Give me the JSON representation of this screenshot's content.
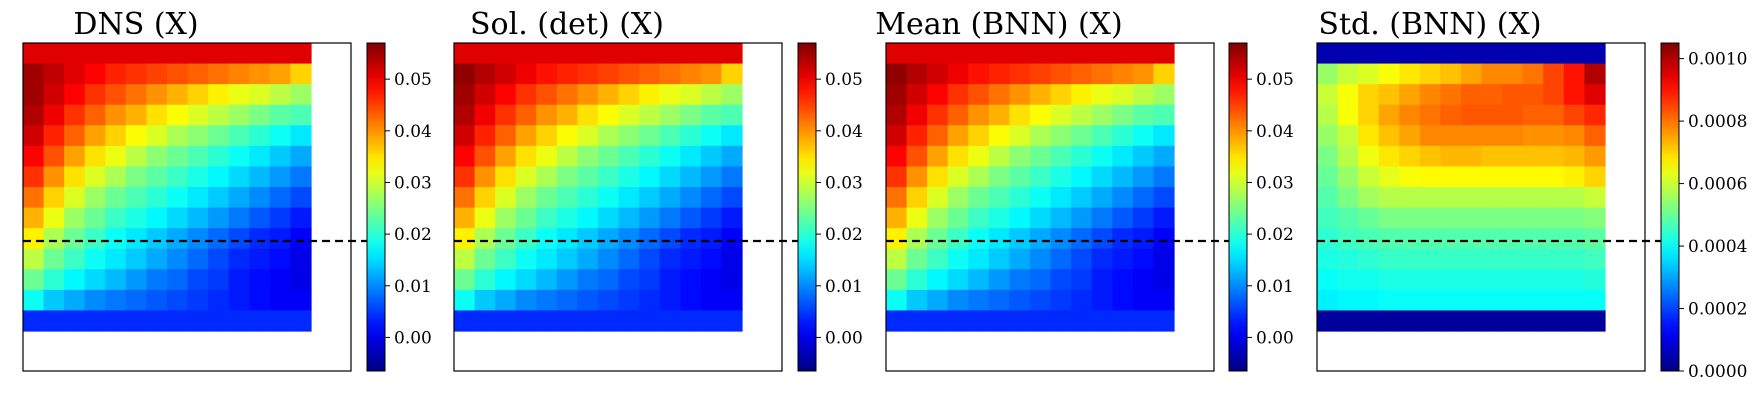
{
  "figure": {
    "panel_titles": [
      "DNS (X)",
      "Sol. (det) (X)",
      "Mean (BNN) (X)",
      "Std. (BNN) (X)"
    ]
  },
  "chart_data": [
    {
      "type": "heatmap",
      "title": "DNS (X)",
      "colormap": "jet",
      "colorbar": {
        "vmin": -0.0065,
        "vmax": 0.057,
        "ticks": [
          "0.00",
          "0.01",
          "0.02",
          "0.03",
          "0.04",
          "0.05"
        ],
        "tick_values": [
          0.0,
          0.01,
          0.02,
          0.03,
          0.04,
          0.05
        ]
      },
      "grid_rows": 14,
      "grid_cols": 14,
      "values": [
        [
          0.051,
          0.051,
          0.051,
          0.051,
          0.051,
          0.051,
          0.051,
          0.051,
          0.051,
          0.051,
          0.051,
          0.051,
          0.051,
          0.051
        ],
        [
          0.055,
          0.053,
          0.051,
          0.049,
          0.047,
          0.046,
          0.045,
          0.044,
          0.043,
          0.042,
          0.041,
          0.04,
          0.039,
          0.036
        ],
        [
          0.055,
          0.052,
          0.049,
          0.046,
          0.044,
          0.042,
          0.04,
          0.038,
          0.036,
          0.034,
          0.032,
          0.031,
          0.029,
          0.027
        ],
        [
          0.054,
          0.05,
          0.046,
          0.043,
          0.04,
          0.038,
          0.035,
          0.033,
          0.031,
          0.029,
          0.027,
          0.025,
          0.023,
          0.022
        ],
        [
          0.052,
          0.047,
          0.043,
          0.039,
          0.036,
          0.033,
          0.031,
          0.028,
          0.026,
          0.024,
          0.022,
          0.02,
          0.018,
          0.016
        ],
        [
          0.049,
          0.044,
          0.039,
          0.035,
          0.032,
          0.029,
          0.026,
          0.024,
          0.022,
          0.02,
          0.018,
          0.016,
          0.014,
          0.012
        ],
        [
          0.046,
          0.04,
          0.035,
          0.031,
          0.028,
          0.025,
          0.023,
          0.021,
          0.019,
          0.017,
          0.015,
          0.013,
          0.011,
          0.009
        ],
        [
          0.042,
          0.036,
          0.031,
          0.027,
          0.024,
          0.022,
          0.02,
          0.018,
          0.016,
          0.014,
          0.012,
          0.01,
          0.008,
          0.006
        ],
        [
          0.038,
          0.032,
          0.027,
          0.024,
          0.021,
          0.019,
          0.017,
          0.015,
          0.013,
          0.011,
          0.009,
          0.007,
          0.005,
          0.003
        ],
        [
          0.034,
          0.028,
          0.024,
          0.021,
          0.018,
          0.016,
          0.014,
          0.012,
          0.01,
          0.008,
          0.006,
          0.004,
          0.003,
          0.001
        ],
        [
          0.029,
          0.024,
          0.021,
          0.018,
          0.016,
          0.014,
          0.012,
          0.01,
          0.008,
          0.006,
          0.004,
          0.003,
          0.002,
          0.0
        ],
        [
          0.024,
          0.02,
          0.017,
          0.015,
          0.013,
          0.011,
          0.009,
          0.008,
          0.006,
          0.005,
          0.003,
          0.002,
          0.001,
          0.0
        ],
        [
          0.018,
          0.014,
          0.012,
          0.01,
          0.009,
          0.008,
          0.007,
          0.006,
          0.005,
          0.004,
          0.003,
          0.002,
          0.001,
          0.001
        ],
        [
          0.004,
          0.004,
          0.004,
          0.004,
          0.004,
          0.004,
          0.004,
          0.004,
          0.004,
          0.004,
          0.004,
          0.004,
          0.004,
          0.004
        ]
      ],
      "reference_line": "dashed horizontal line at y = 0.5"
    },
    {
      "type": "heatmap",
      "title": "Sol. (det) (X)",
      "colormap": "jet",
      "colorbar": {
        "vmin": -0.0065,
        "vmax": 0.057,
        "ticks": [
          "0.00",
          "0.01",
          "0.02",
          "0.03",
          "0.04",
          "0.05"
        ],
        "tick_values": [
          0.0,
          0.01,
          0.02,
          0.03,
          0.04,
          0.05
        ]
      },
      "grid_rows": 14,
      "grid_cols": 14,
      "values": [
        [
          0.051,
          0.051,
          0.051,
          0.051,
          0.051,
          0.051,
          0.051,
          0.051,
          0.051,
          0.051,
          0.051,
          0.051,
          0.051,
          0.051
        ],
        [
          0.056,
          0.054,
          0.052,
          0.05,
          0.048,
          0.047,
          0.046,
          0.045,
          0.044,
          0.043,
          0.042,
          0.041,
          0.04,
          0.036
        ],
        [
          0.055,
          0.052,
          0.049,
          0.046,
          0.044,
          0.042,
          0.04,
          0.038,
          0.036,
          0.034,
          0.032,
          0.031,
          0.029,
          0.027
        ],
        [
          0.054,
          0.05,
          0.046,
          0.043,
          0.04,
          0.038,
          0.035,
          0.033,
          0.031,
          0.029,
          0.027,
          0.025,
          0.023,
          0.022
        ],
        [
          0.052,
          0.047,
          0.043,
          0.039,
          0.036,
          0.033,
          0.031,
          0.028,
          0.026,
          0.024,
          0.022,
          0.02,
          0.018,
          0.016
        ],
        [
          0.049,
          0.044,
          0.039,
          0.035,
          0.032,
          0.029,
          0.026,
          0.024,
          0.022,
          0.02,
          0.018,
          0.016,
          0.014,
          0.012
        ],
        [
          0.046,
          0.04,
          0.035,
          0.031,
          0.028,
          0.025,
          0.023,
          0.021,
          0.019,
          0.017,
          0.015,
          0.013,
          0.011,
          0.009
        ],
        [
          0.042,
          0.036,
          0.031,
          0.027,
          0.024,
          0.022,
          0.02,
          0.018,
          0.016,
          0.014,
          0.012,
          0.01,
          0.008,
          0.006
        ],
        [
          0.038,
          0.032,
          0.027,
          0.024,
          0.021,
          0.019,
          0.017,
          0.015,
          0.013,
          0.011,
          0.009,
          0.007,
          0.005,
          0.003
        ],
        [
          0.034,
          0.028,
          0.024,
          0.021,
          0.018,
          0.016,
          0.014,
          0.012,
          0.01,
          0.008,
          0.006,
          0.004,
          0.003,
          0.001
        ],
        [
          0.029,
          0.024,
          0.021,
          0.018,
          0.016,
          0.014,
          0.012,
          0.01,
          0.008,
          0.006,
          0.004,
          0.003,
          0.002,
          0.0
        ],
        [
          0.024,
          0.02,
          0.017,
          0.015,
          0.013,
          0.011,
          0.009,
          0.008,
          0.006,
          0.005,
          0.003,
          0.002,
          0.001,
          0.0
        ],
        [
          0.018,
          0.014,
          0.012,
          0.01,
          0.009,
          0.008,
          0.007,
          0.006,
          0.005,
          0.004,
          0.003,
          0.002,
          0.001,
          0.001
        ],
        [
          0.004,
          0.004,
          0.004,
          0.004,
          0.004,
          0.004,
          0.004,
          0.004,
          0.004,
          0.004,
          0.004,
          0.004,
          0.004,
          0.004
        ]
      ],
      "reference_line": "dashed horizontal line at y = 0.5"
    },
    {
      "type": "heatmap",
      "title": "Mean (BNN) (X)",
      "colormap": "jet",
      "colorbar": {
        "vmin": -0.0065,
        "vmax": 0.057,
        "ticks": [
          "0.00",
          "0.01",
          "0.02",
          "0.03",
          "0.04",
          "0.05"
        ],
        "tick_values": [
          0.0,
          0.01,
          0.02,
          0.03,
          0.04,
          0.05
        ]
      },
      "grid_rows": 14,
      "grid_cols": 14,
      "values": [
        [
          0.051,
          0.051,
          0.051,
          0.051,
          0.051,
          0.051,
          0.051,
          0.051,
          0.051,
          0.051,
          0.051,
          0.051,
          0.051,
          0.051
        ],
        [
          0.056,
          0.054,
          0.052,
          0.05,
          0.048,
          0.047,
          0.046,
          0.045,
          0.044,
          0.043,
          0.042,
          0.041,
          0.04,
          0.036
        ],
        [
          0.055,
          0.052,
          0.049,
          0.046,
          0.044,
          0.042,
          0.04,
          0.038,
          0.036,
          0.034,
          0.032,
          0.031,
          0.029,
          0.027
        ],
        [
          0.054,
          0.05,
          0.046,
          0.043,
          0.04,
          0.038,
          0.035,
          0.033,
          0.031,
          0.029,
          0.027,
          0.025,
          0.023,
          0.022
        ],
        [
          0.052,
          0.047,
          0.043,
          0.039,
          0.036,
          0.033,
          0.031,
          0.028,
          0.026,
          0.024,
          0.022,
          0.02,
          0.018,
          0.016
        ],
        [
          0.049,
          0.044,
          0.039,
          0.035,
          0.032,
          0.029,
          0.026,
          0.024,
          0.022,
          0.02,
          0.018,
          0.016,
          0.014,
          0.012
        ],
        [
          0.046,
          0.04,
          0.035,
          0.031,
          0.028,
          0.025,
          0.023,
          0.021,
          0.019,
          0.017,
          0.015,
          0.013,
          0.011,
          0.009
        ],
        [
          0.042,
          0.036,
          0.031,
          0.027,
          0.024,
          0.022,
          0.02,
          0.018,
          0.016,
          0.014,
          0.012,
          0.01,
          0.008,
          0.006
        ],
        [
          0.038,
          0.032,
          0.027,
          0.024,
          0.021,
          0.019,
          0.017,
          0.015,
          0.013,
          0.011,
          0.009,
          0.007,
          0.005,
          0.003
        ],
        [
          0.034,
          0.028,
          0.024,
          0.021,
          0.018,
          0.016,
          0.014,
          0.012,
          0.01,
          0.008,
          0.006,
          0.004,
          0.003,
          0.001
        ],
        [
          0.029,
          0.024,
          0.021,
          0.018,
          0.016,
          0.014,
          0.012,
          0.01,
          0.008,
          0.006,
          0.004,
          0.003,
          0.002,
          0.0
        ],
        [
          0.024,
          0.02,
          0.017,
          0.015,
          0.013,
          0.011,
          0.009,
          0.008,
          0.006,
          0.005,
          0.003,
          0.002,
          0.001,
          0.0
        ],
        [
          0.018,
          0.014,
          0.012,
          0.01,
          0.009,
          0.008,
          0.007,
          0.006,
          0.005,
          0.004,
          0.003,
          0.002,
          0.001,
          0.001
        ],
        [
          0.004,
          0.004,
          0.004,
          0.004,
          0.004,
          0.004,
          0.004,
          0.004,
          0.004,
          0.004,
          0.004,
          0.004,
          0.004,
          0.004
        ]
      ],
      "reference_line": "dashed horizontal line at y = 0.5"
    },
    {
      "type": "heatmap",
      "title": "Std. (BNN) (X)",
      "colormap": "jet",
      "colorbar": {
        "vmin": 0.0,
        "vmax": 0.00105,
        "ticks": [
          "0.0000",
          "0.0002",
          "0.0004",
          "0.0006",
          "0.0008",
          "0.0010"
        ],
        "tick_values": [
          0.0,
          0.0002,
          0.0004,
          0.0006,
          0.0008,
          0.001
        ]
      },
      "grid_rows": 14,
      "grid_cols": 14,
      "values": [
        [
          5e-05,
          5e-05,
          5e-05,
          5e-05,
          5e-05,
          5e-05,
          5e-05,
          5e-05,
          5e-05,
          5e-05,
          5e-05,
          5e-05,
          5e-05,
          5e-05
        ],
        [
          0.00055,
          0.0006,
          0.00062,
          0.00065,
          0.00068,
          0.0007,
          0.00072,
          0.00075,
          0.00078,
          0.00078,
          0.0008,
          0.00085,
          0.0009,
          0.001
        ],
        [
          0.0006,
          0.00065,
          0.0007,
          0.00072,
          0.00075,
          0.00078,
          0.0008,
          0.00082,
          0.00082,
          0.00083,
          0.00083,
          0.00085,
          0.0009,
          0.00095
        ],
        [
          0.00058,
          0.00065,
          0.0007,
          0.00075,
          0.00078,
          0.0008,
          0.00082,
          0.00083,
          0.00083,
          0.00083,
          0.00082,
          0.00082,
          0.00085,
          0.00088
        ],
        [
          0.00055,
          0.0006,
          0.00068,
          0.00072,
          0.00075,
          0.00078,
          0.00078,
          0.00078,
          0.00078,
          0.00078,
          0.00077,
          0.00077,
          0.00078,
          0.00082
        ],
        [
          0.00052,
          0.00058,
          0.00064,
          0.00068,
          0.0007,
          0.00072,
          0.00073,
          0.00073,
          0.00072,
          0.00072,
          0.00072,
          0.00072,
          0.00073,
          0.00076
        ],
        [
          0.0005,
          0.00055,
          0.0006,
          0.00063,
          0.00065,
          0.00066,
          0.00066,
          0.00066,
          0.00066,
          0.00066,
          0.00066,
          0.00066,
          0.00067,
          0.0007
        ],
        [
          0.00048,
          0.00052,
          0.00056,
          0.00058,
          0.00058,
          0.00058,
          0.00058,
          0.00058,
          0.00058,
          0.00058,
          0.00058,
          0.00058,
          0.00058,
          0.0006
        ],
        [
          0.00046,
          0.00048,
          0.0005,
          0.00052,
          0.00052,
          0.00052,
          0.00052,
          0.00052,
          0.00052,
          0.00052,
          0.00052,
          0.00052,
          0.00052,
          0.00053
        ],
        [
          0.00044,
          0.00046,
          0.00047,
          0.00048,
          0.00048,
          0.00048,
          0.00048,
          0.00048,
          0.00048,
          0.00048,
          0.00048,
          0.00048,
          0.00048,
          0.00049
        ],
        [
          0.00042,
          0.00043,
          0.00044,
          0.00045,
          0.00045,
          0.00045,
          0.00045,
          0.00045,
          0.00045,
          0.00045,
          0.00045,
          0.00045,
          0.00045,
          0.00046
        ],
        [
          0.0004,
          0.00041,
          0.00041,
          0.00042,
          0.00042,
          0.00042,
          0.00042,
          0.00042,
          0.00042,
          0.00042,
          0.00042,
          0.00042,
          0.00042,
          0.00043
        ],
        [
          0.00038,
          0.00039,
          0.00039,
          0.0004,
          0.0004,
          0.0004,
          0.0004,
          0.0004,
          0.0004,
          0.0004,
          0.0004,
          0.0004,
          0.0004,
          0.0004
        ],
        [
          3e-05,
          3e-05,
          3e-05,
          3e-05,
          3e-05,
          3e-05,
          3e-05,
          3e-05,
          3e-05,
          3e-05,
          3e-05,
          3e-05,
          3e-05,
          3e-05
        ]
      ],
      "reference_line": "dashed horizontal line at y = 0.5"
    }
  ]
}
